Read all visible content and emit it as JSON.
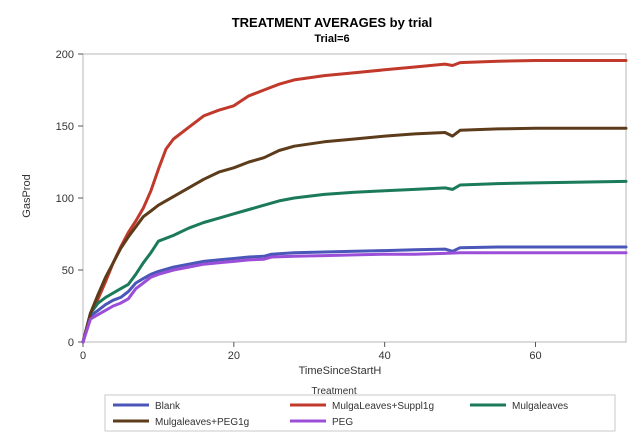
{
  "chart_data": {
    "type": "line",
    "title": "TREATMENT AVERAGES by trial",
    "subtitle": "Trial=6",
    "xlabel": "TimeSinceStartH",
    "ylabel": "GasProd",
    "xlim": [
      0,
      72
    ],
    "ylim": [
      0,
      200
    ],
    "xticks": [
      0,
      20,
      40,
      60
    ],
    "yticks": [
      0,
      50,
      100,
      150,
      200
    ],
    "grid": false,
    "legend": {
      "title": "Treatment",
      "placement": "bottom",
      "entries": [
        "Blank",
        "MulgaLeaves+Suppl1g",
        "Mulgaleaves",
        "Mulgaleaves+PEG1g",
        "PEG"
      ]
    },
    "series": [
      {
        "name": "Blank",
        "color": "#4a56b8",
        "points": [
          [
            0,
            0
          ],
          [
            1,
            18
          ],
          [
            2,
            22
          ],
          [
            3,
            26
          ],
          [
            4,
            29
          ],
          [
            5,
            31
          ],
          [
            6,
            35
          ],
          [
            7,
            41
          ],
          [
            8,
            44
          ],
          [
            9,
            47
          ],
          [
            10,
            49
          ],
          [
            12,
            52
          ],
          [
            14,
            54
          ],
          [
            16,
            56
          ],
          [
            18,
            57
          ],
          [
            20,
            58
          ],
          [
            22,
            59
          ],
          [
            24,
            59.5
          ],
          [
            25,
            61
          ],
          [
            28,
            62
          ],
          [
            32,
            62.5
          ],
          [
            36,
            63
          ],
          [
            40,
            63.5
          ],
          [
            44,
            64
          ],
          [
            48,
            64.5
          ],
          [
            49,
            63
          ],
          [
            50,
            65.5
          ],
          [
            55,
            66
          ],
          [
            60,
            66
          ],
          [
            65,
            66
          ],
          [
            72,
            66
          ]
        ]
      },
      {
        "name": "MulgaLeaves+Suppl1g",
        "color": "#c0392b",
        "points": [
          [
            0,
            0
          ],
          [
            1,
            20
          ],
          [
            2,
            30
          ],
          [
            3,
            42
          ],
          [
            4,
            55
          ],
          [
            5,
            66
          ],
          [
            6,
            76
          ],
          [
            7,
            84
          ],
          [
            8,
            93
          ],
          [
            9,
            105
          ],
          [
            10,
            120
          ],
          [
            11,
            134
          ],
          [
            12,
            141
          ],
          [
            14,
            149
          ],
          [
            16,
            157
          ],
          [
            18,
            161
          ],
          [
            20,
            164
          ],
          [
            22,
            171
          ],
          [
            24,
            175
          ],
          [
            26,
            179
          ],
          [
            28,
            182
          ],
          [
            32,
            185
          ],
          [
            36,
            187
          ],
          [
            40,
            189
          ],
          [
            44,
            191
          ],
          [
            48,
            193
          ],
          [
            49,
            192
          ],
          [
            50,
            194
          ],
          [
            55,
            195
          ],
          [
            60,
            195.5
          ],
          [
            65,
            195.5
          ],
          [
            72,
            195.5
          ]
        ]
      },
      {
        "name": "Mulgaleaves",
        "color": "#1a7a5a",
        "points": [
          [
            0,
            0
          ],
          [
            1,
            20
          ],
          [
            2,
            27
          ],
          [
            3,
            31
          ],
          [
            4,
            34
          ],
          [
            5,
            37
          ],
          [
            6,
            40
          ],
          [
            7,
            47
          ],
          [
            8,
            55
          ],
          [
            9,
            62
          ],
          [
            10,
            70
          ],
          [
            12,
            74
          ],
          [
            14,
            79
          ],
          [
            16,
            83
          ],
          [
            18,
            86
          ],
          [
            20,
            89
          ],
          [
            22,
            92
          ],
          [
            24,
            95
          ],
          [
            26,
            98
          ],
          [
            28,
            100
          ],
          [
            32,
            102.5
          ],
          [
            36,
            104
          ],
          [
            40,
            105
          ],
          [
            44,
            106
          ],
          [
            48,
            107
          ],
          [
            49,
            106
          ],
          [
            50,
            109
          ],
          [
            55,
            110
          ],
          [
            60,
            110.5
          ],
          [
            65,
            111
          ],
          [
            72,
            111.5
          ]
        ]
      },
      {
        "name": "Mulgaleaves+PEG1g",
        "color": "#5c3c1a",
        "points": [
          [
            0,
            0
          ],
          [
            1,
            20
          ],
          [
            2,
            33
          ],
          [
            3,
            45
          ],
          [
            4,
            55
          ],
          [
            5,
            65
          ],
          [
            6,
            73
          ],
          [
            7,
            80
          ],
          [
            8,
            87
          ],
          [
            9,
            91
          ],
          [
            10,
            95
          ],
          [
            12,
            101
          ],
          [
            14,
            107
          ],
          [
            16,
            113
          ],
          [
            18,
            118
          ],
          [
            20,
            121
          ],
          [
            22,
            125
          ],
          [
            24,
            128
          ],
          [
            26,
            133
          ],
          [
            28,
            136
          ],
          [
            32,
            139
          ],
          [
            36,
            141
          ],
          [
            40,
            143
          ],
          [
            44,
            144.5
          ],
          [
            48,
            145.5
          ],
          [
            49,
            143
          ],
          [
            50,
            147
          ],
          [
            55,
            148
          ],
          [
            60,
            148.5
          ],
          [
            65,
            148.5
          ],
          [
            72,
            148.5
          ]
        ]
      },
      {
        "name": "PEG",
        "color": "#9b4fd8",
        "points": [
          [
            0,
            0
          ],
          [
            1,
            16
          ],
          [
            2,
            19
          ],
          [
            3,
            22
          ],
          [
            4,
            25
          ],
          [
            5,
            27
          ],
          [
            6,
            30
          ],
          [
            7,
            37
          ],
          [
            8,
            41
          ],
          [
            9,
            45
          ],
          [
            10,
            47
          ],
          [
            12,
            50
          ],
          [
            14,
            52
          ],
          [
            16,
            54
          ],
          [
            18,
            55
          ],
          [
            20,
            56
          ],
          [
            22,
            57
          ],
          [
            24,
            57.5
          ],
          [
            25,
            59
          ],
          [
            28,
            59.5
          ],
          [
            32,
            60
          ],
          [
            36,
            60.5
          ],
          [
            40,
            61
          ],
          [
            44,
            61
          ],
          [
            48,
            61.5
          ],
          [
            50,
            62
          ],
          [
            55,
            62
          ],
          [
            60,
            62
          ],
          [
            65,
            62
          ],
          [
            72,
            62
          ]
        ]
      }
    ]
  }
}
